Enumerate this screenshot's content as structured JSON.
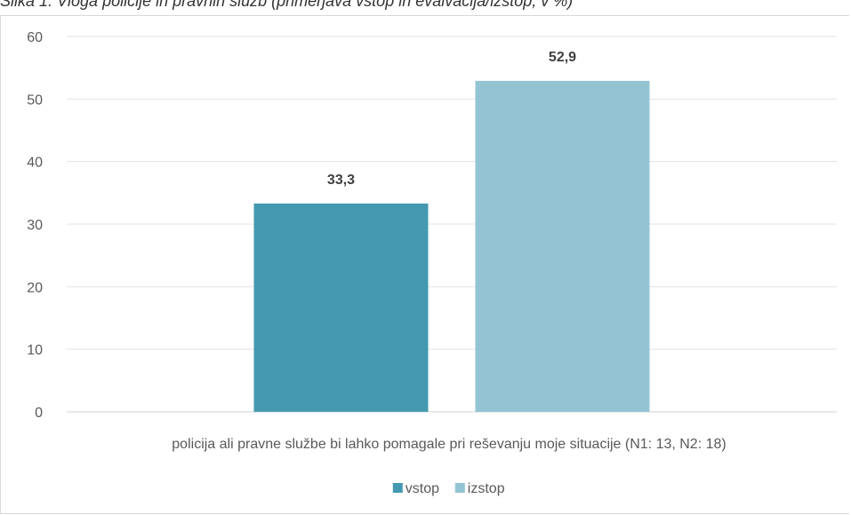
{
  "caption": "Slika 1: Vloga policije in pravnih služb (primerjava vstop in evalvacija/izstop, v %)",
  "chart_data": {
    "type": "bar",
    "categories": [
      "policija ali pravne službe bi lahko pomagale pri reševanju moje situacije (N1: 13, N2: 18)"
    ],
    "series": [
      {
        "name": "vstop",
        "values": [
          33.3
        ],
        "color": "#4499b0",
        "label": "33,3"
      },
      {
        "name": "izstop",
        "values": [
          52.9
        ],
        "color": "#94c4d4",
        "label": "52,9"
      }
    ],
    "ylim": [
      0,
      60
    ],
    "yticks": [
      0,
      10,
      20,
      30,
      40,
      50,
      60
    ],
    "grid": true,
    "legend": "bottom"
  }
}
